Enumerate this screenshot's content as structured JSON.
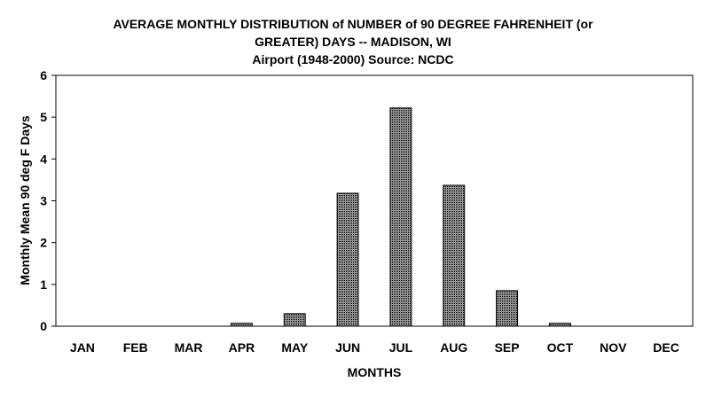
{
  "chart_data": {
    "type": "bar",
    "title_lines": [
      "AVERAGE MONTHLY DISTRIBUTION of NUMBER of 90 DEGREE FAHRENHEIT (or",
      "GREATER) DAYS -- MADISON, WI",
      "Airport (1948-2000) Source: NCDC"
    ],
    "xlabel": "MONTHS",
    "ylabel": "Monthly Mean 90 deg F Days",
    "categories": [
      "JAN",
      "FEB",
      "MAR",
      "APR",
      "MAY",
      "JUN",
      "JUL",
      "AUG",
      "SEP",
      "OCT",
      "NOV",
      "DEC"
    ],
    "values": [
      0,
      0,
      0,
      0.07,
      0.3,
      3.18,
      5.22,
      3.37,
      0.85,
      0.07,
      0,
      0
    ],
    "ylim": [
      0,
      6
    ],
    "yticks": [
      "0",
      "1",
      "2",
      "3",
      "4",
      "5",
      "6"
    ],
    "grid": false,
    "legend": "none",
    "bar_fill": "crosshatch-gray"
  }
}
